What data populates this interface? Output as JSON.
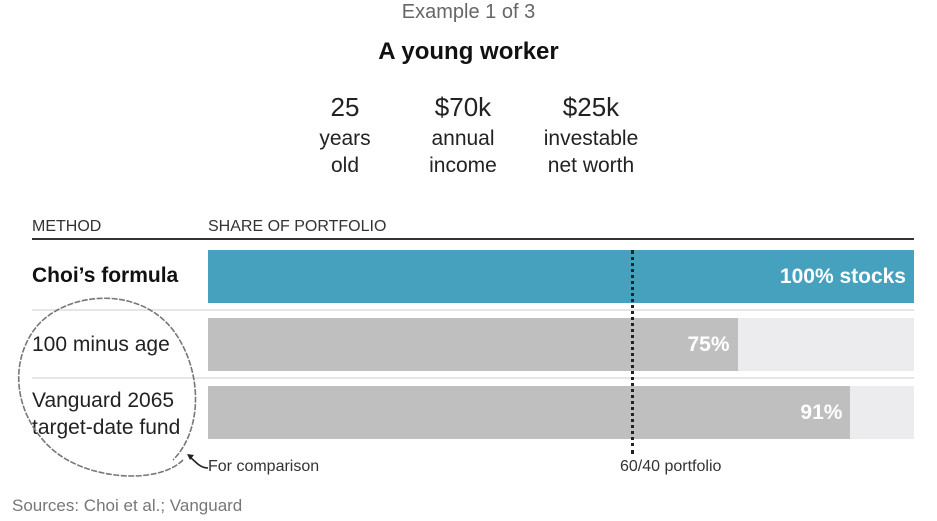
{
  "header": {
    "kicker": "Example 1 of 3",
    "title": "A young worker"
  },
  "stats": [
    {
      "value": "25",
      "line1": "years",
      "line2": "old"
    },
    {
      "value": "$70k",
      "line1": "annual",
      "line2": "income"
    },
    {
      "value": "$25k",
      "line1": "investable",
      "line2": "net worth"
    }
  ],
  "chart_data": {
    "type": "bar",
    "orientation": "horizontal",
    "col_headers": {
      "method": "METHOD",
      "share": "SHARE OF PORTFOLIO"
    },
    "categories": [
      "Choi’s formula",
      "100 minus age",
      "Vanguard 2065 target-date fund"
    ],
    "label_lines": [
      [
        "Choi’s formula"
      ],
      [
        "100 minus age"
      ],
      [
        "Vanguard 2065",
        "target-date fund"
      ]
    ],
    "values": [
      100,
      75,
      91
    ],
    "value_labels": [
      "100% stocks",
      "75%",
      "91%"
    ],
    "xlim": [
      0,
      100
    ],
    "colors": {
      "highlight": "#45a1bd",
      "other": "#bfbfbf",
      "track": "#ececee"
    },
    "reference_line": {
      "value": 60,
      "label": "60/40 portfolio"
    },
    "annotation": "For comparison"
  },
  "source": "Sources: Choi et al.; Vanguard"
}
